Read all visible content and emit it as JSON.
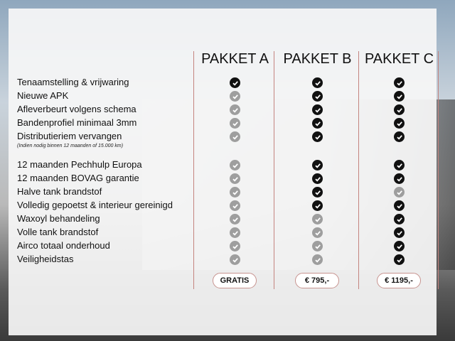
{
  "colors": {
    "check_included": "#111111",
    "check_excluded": "#9e9e9e",
    "divider": "#c4847f"
  },
  "packages": [
    {
      "name": "PAKKET A",
      "price": "GRATIS"
    },
    {
      "name": "PAKKET B",
      "price": "€ 795,-"
    },
    {
      "name": "PAKKET C",
      "price": "€ 1195,-"
    }
  ],
  "note": "(Indien nodig binnen 12 maanden of 15.000 km)",
  "features": [
    {
      "label": "Tenaamstelling & vrijwaring",
      "included": [
        true,
        true,
        true
      ]
    },
    {
      "label": "Nieuwe APK",
      "included": [
        false,
        true,
        true
      ]
    },
    {
      "label": "Afleverbeurt volgens schema",
      "included": [
        false,
        true,
        true
      ]
    },
    {
      "label": "Bandenprofiel minimaal 3mm",
      "included": [
        false,
        true,
        true
      ]
    },
    {
      "label": "Distributieriem vervangen",
      "included": [
        false,
        true,
        true
      ]
    },
    {
      "label": "12 maanden Pechhulp Europa",
      "included": [
        false,
        true,
        true
      ]
    },
    {
      "label": "12 maanden BOVAG garantie",
      "included": [
        false,
        true,
        true
      ]
    },
    {
      "label": "Halve tank brandstof",
      "included": [
        false,
        true,
        false
      ]
    },
    {
      "label": "Volledig gepoetst & interieur gereinigd",
      "included": [
        false,
        true,
        true
      ]
    },
    {
      "label": "Waxoyl behandeling",
      "included": [
        false,
        false,
        true
      ]
    },
    {
      "label": "Volle tank brandstof",
      "included": [
        false,
        false,
        true
      ]
    },
    {
      "label": "Airco totaal onderhoud",
      "included": [
        false,
        false,
        true
      ]
    },
    {
      "label": "Veiligheidstas",
      "included": [
        false,
        false,
        true
      ]
    }
  ]
}
